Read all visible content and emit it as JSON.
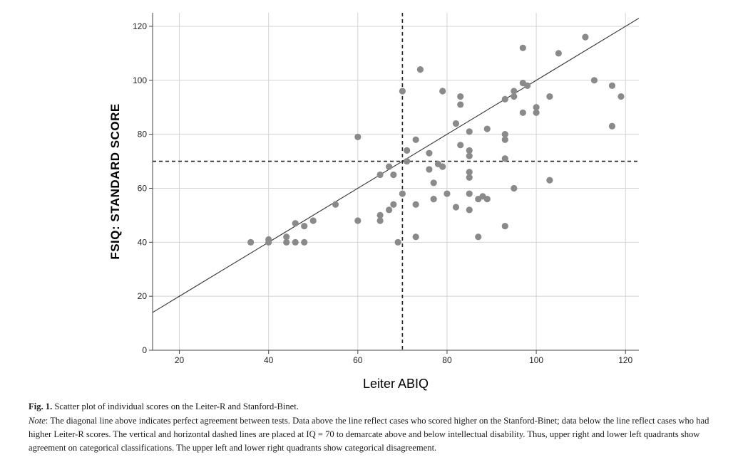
{
  "chart_data": {
    "type": "scatter",
    "xlabel": "Leiter ABIQ",
    "ylabel": "FSIQ: STANDARD SCORE",
    "xlim": [
      14,
      123
    ],
    "ylim": [
      0,
      125
    ],
    "x_ticks": [
      20,
      40,
      60,
      80,
      100,
      120
    ],
    "y_ticks": [
      0,
      20,
      40,
      60,
      80,
      100,
      120
    ],
    "grid": true,
    "legend": "none",
    "point_color": "#8a8a8a",
    "reference_lines": [
      {
        "type": "diagonal",
        "slope": 1,
        "intercept": 0,
        "style": "solid"
      },
      {
        "type": "vertical",
        "x": 70,
        "style": "dashed"
      },
      {
        "type": "horizontal",
        "y": 70,
        "style": "dashed"
      }
    ],
    "points": [
      [
        36,
        40
      ],
      [
        40,
        40
      ],
      [
        40,
        41
      ],
      [
        44,
        40
      ],
      [
        44,
        42
      ],
      [
        46,
        40
      ],
      [
        46,
        47
      ],
      [
        48,
        40
      ],
      [
        48,
        46
      ],
      [
        50,
        48
      ],
      [
        55,
        54
      ],
      [
        60,
        48
      ],
      [
        60,
        79
      ],
      [
        65,
        48
      ],
      [
        65,
        50
      ],
      [
        65,
        65
      ],
      [
        67,
        52
      ],
      [
        67,
        68
      ],
      [
        68,
        54
      ],
      [
        68,
        65
      ],
      [
        69,
        40
      ],
      [
        70,
        58
      ],
      [
        70,
        96
      ],
      [
        71,
        70
      ],
      [
        71,
        74
      ],
      [
        73,
        42
      ],
      [
        73,
        54
      ],
      [
        73,
        78
      ],
      [
        74,
        104
      ],
      [
        76,
        67
      ],
      [
        76,
        73
      ],
      [
        77,
        56
      ],
      [
        77,
        62
      ],
      [
        78,
        69
      ],
      [
        79,
        68
      ],
      [
        79,
        96
      ],
      [
        80,
        58
      ],
      [
        82,
        53
      ],
      [
        82,
        84
      ],
      [
        83,
        76
      ],
      [
        83,
        91
      ],
      [
        83,
        94
      ],
      [
        85,
        52
      ],
      [
        85,
        58
      ],
      [
        85,
        64
      ],
      [
        85,
        66
      ],
      [
        85,
        72
      ],
      [
        85,
        74
      ],
      [
        85,
        81
      ],
      [
        87,
        42
      ],
      [
        87,
        56
      ],
      [
        88,
        57
      ],
      [
        89,
        56
      ],
      [
        89,
        82
      ],
      [
        93,
        46
      ],
      [
        93,
        71
      ],
      [
        93,
        78
      ],
      [
        93,
        80
      ],
      [
        93,
        93
      ],
      [
        95,
        60
      ],
      [
        95,
        94
      ],
      [
        95,
        96
      ],
      [
        97,
        88
      ],
      [
        97,
        99
      ],
      [
        97,
        112
      ],
      [
        98,
        98
      ],
      [
        100,
        88
      ],
      [
        100,
        90
      ],
      [
        103,
        63
      ],
      [
        103,
        94
      ],
      [
        105,
        110
      ],
      [
        111,
        116
      ],
      [
        113,
        100
      ],
      [
        117,
        83
      ],
      [
        117,
        98
      ],
      [
        119,
        94
      ]
    ]
  },
  "caption": {
    "fig_label": "Fig. 1.",
    "fig_text": " Scatter plot of individual scores on the Leiter-R and Stanford-Binet.",
    "note_label": "Note",
    "note_text": ": The diagonal line above indicates perfect agreement between tests. Data above the line reflect cases who scored higher on the Stanford-Binet; data below the line reflect cases who had higher Leiter-R scores. The vertical and horizontal dashed lines are placed at IQ = 70 to demarcate above and below intellectual disability. Thus, upper right and lower left quadrants show agreement on categorical classifications. The upper left and lower right quadrants show categorical disagreement."
  }
}
